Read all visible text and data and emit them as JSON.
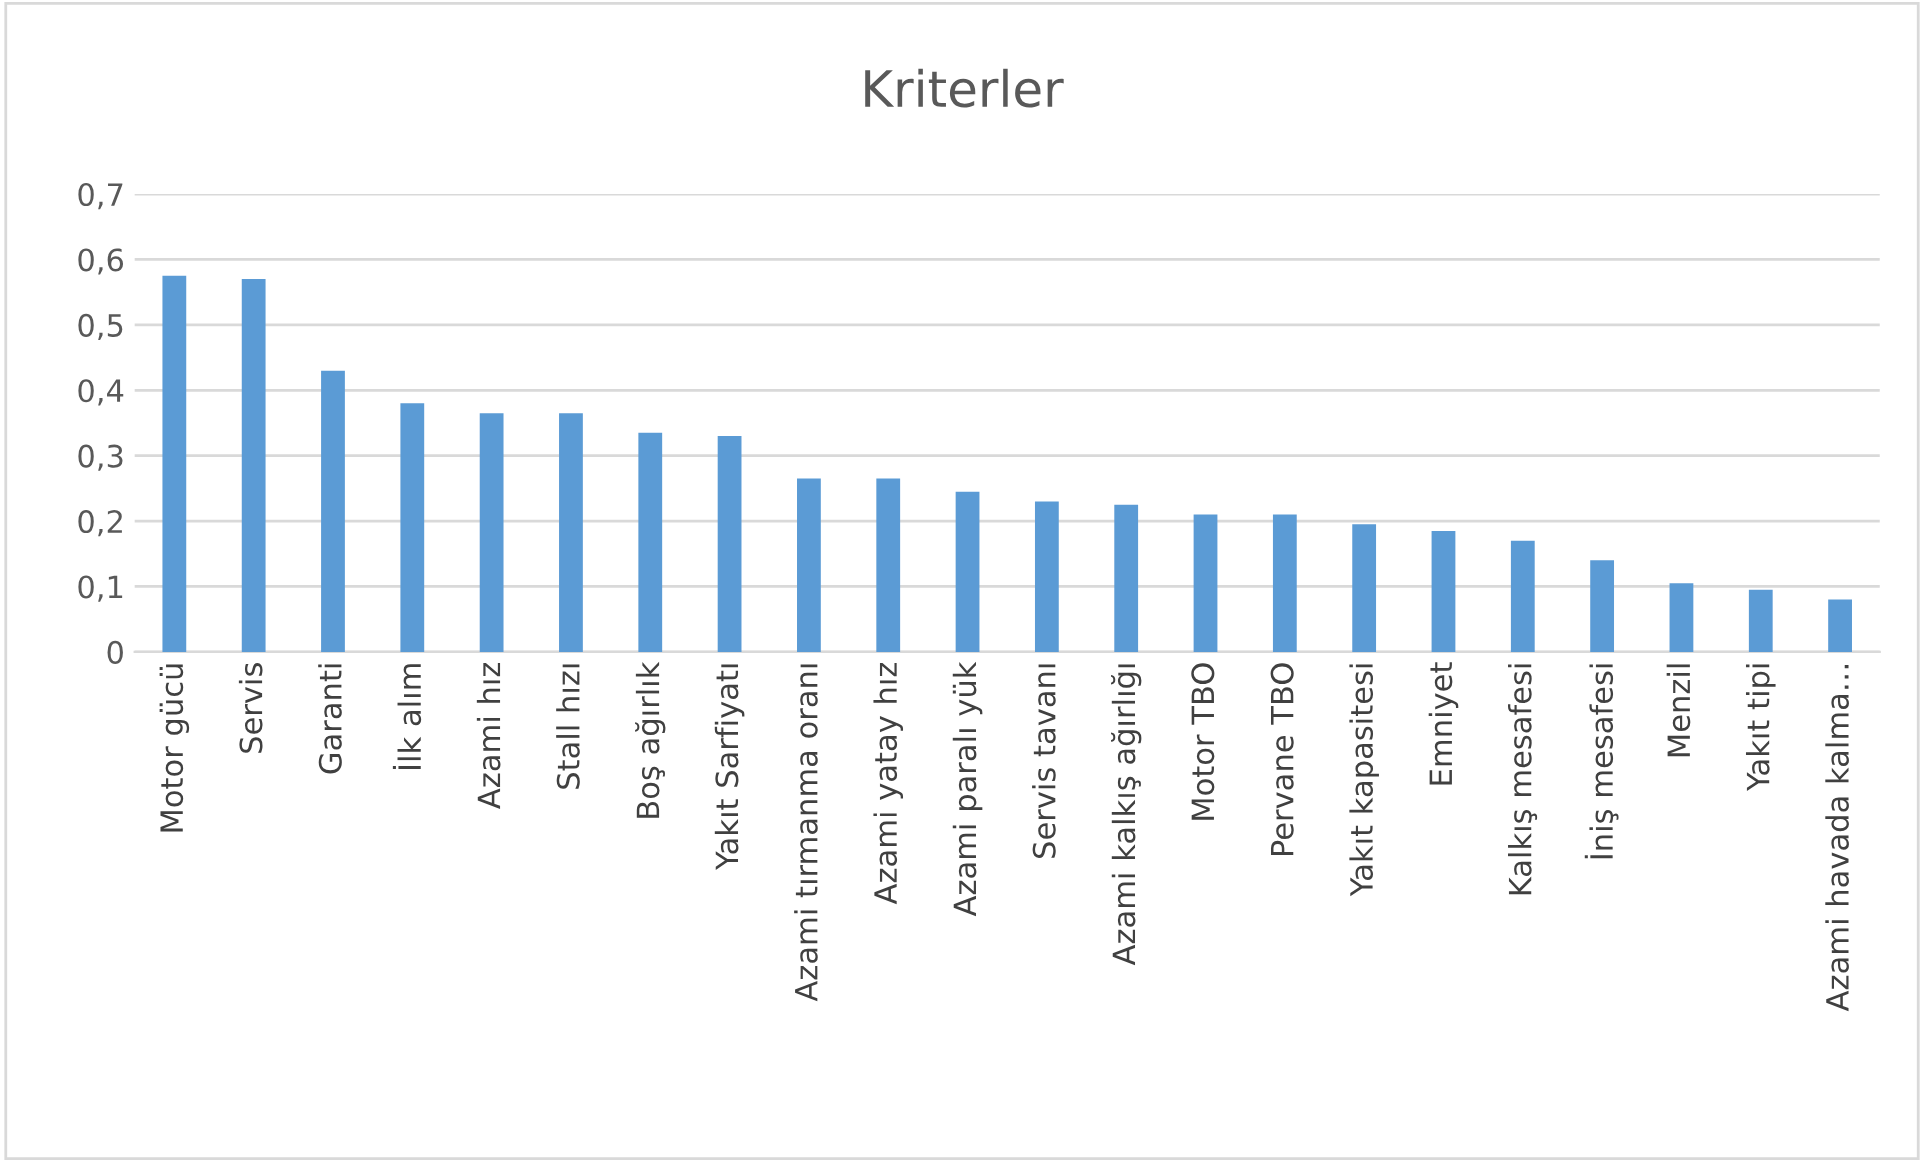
{
  "chart_data": {
    "type": "bar",
    "title": "Kriterler",
    "categories": [
      "Motor gücü",
      "Servis",
      "Garanti",
      "İlk alım",
      "Azami hız",
      "Stall hızı",
      "Boş ağırlık",
      "Yakıt Sarfiyatı",
      "Azami tırmanma oranı",
      "Azami yatay hız",
      "Azami paralı yük",
      "Servis tavanı",
      "Azami kalkış ağırlığı",
      "Motor TBO",
      "Pervane TBO",
      "Yakıt kapasitesi",
      "Emniyet",
      "Kalkış mesafesi",
      "İniş mesafesi",
      "Menzil",
      "Yakıt tipi",
      "Azami havada kalma…"
    ],
    "values": [
      0.575,
      0.57,
      0.43,
      0.38,
      0.365,
      0.365,
      0.335,
      0.33,
      0.265,
      0.265,
      0.245,
      0.23,
      0.225,
      0.21,
      0.21,
      0.195,
      0.185,
      0.17,
      0.14,
      0.105,
      0.095,
      0.08
    ],
    "color": "#5b9bd5",
    "ylim": [
      0,
      0.7
    ],
    "yticks": [
      0,
      {
        "value": 0.1,
        "label": "0,1"
      },
      {
        "value": 0.2,
        "label": "0,2"
      },
      {
        "value": 0.3,
        "label": "0,3"
      },
      {
        "value": 0.4,
        "label": "0,4"
      },
      {
        "value": 0.5,
        "label": "0,5"
      },
      {
        "value": 0.6,
        "label": "0,6"
      },
      {
        "value": 0.7,
        "label": "0,7"
      }
    ],
    "grid": "y",
    "legend": false
  }
}
